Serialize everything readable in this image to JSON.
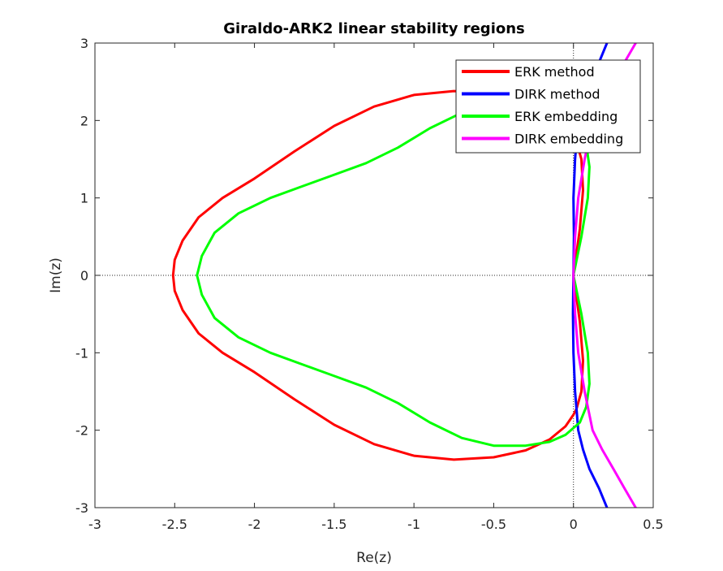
{
  "chart_data": {
    "type": "line",
    "title": "Giraldo-ARK2 linear stability regions",
    "xlabel": "Re(z)",
    "ylabel": "Im(z)",
    "xlim": [
      -3,
      0.5
    ],
    "ylim": [
      -3,
      3
    ],
    "xticks": [
      -3,
      -2.5,
      -2,
      -1.5,
      -1,
      -0.5,
      0,
      0.5
    ],
    "xtick_labels": [
      "-3",
      "-2.5",
      "-2",
      "-1.5",
      "-1",
      "-0.5",
      "0",
      "0.5"
    ],
    "yticks": [
      -3,
      -2,
      -1,
      0,
      1,
      2,
      3
    ],
    "ytick_labels": [
      "-3",
      "-2",
      "-1",
      "0",
      "1",
      "2",
      "3"
    ],
    "grid": false,
    "reference_lines": [
      "x=0 dotted",
      "y=0 dotted"
    ],
    "legend_position": "top-right",
    "series": [
      {
        "name": "ERK method",
        "color": "#ff0000",
        "x": [
          0.0,
          0.04,
          0.06,
          0.05,
          0.02,
          0.0,
          -0.05,
          -0.15,
          -0.3,
          -0.5,
          -0.75,
          -1.0,
          -1.25,
          -1.5,
          -1.75,
          -2.0,
          -2.2,
          -2.35,
          -2.45,
          -2.5,
          -2.51,
          -2.5,
          -2.45,
          -2.35,
          -2.2,
          -2.0,
          -1.75,
          -1.5,
          -1.25,
          -1.0,
          -0.75,
          -0.5,
          -0.3,
          -0.15,
          -0.05,
          0.0,
          0.02,
          0.05,
          0.06,
          0.04,
          0.0
        ],
        "y": [
          0.0,
          0.6,
          1.1,
          1.5,
          1.72,
          1.8,
          1.95,
          2.12,
          2.26,
          2.35,
          2.38,
          2.33,
          2.18,
          1.93,
          1.6,
          1.25,
          1.0,
          0.75,
          0.45,
          0.2,
          0.0,
          -0.2,
          -0.45,
          -0.75,
          -1.0,
          -1.25,
          -1.6,
          -1.93,
          -2.18,
          -2.33,
          -2.38,
          -2.35,
          -2.26,
          -2.12,
          -1.95,
          -1.8,
          -1.72,
          -1.5,
          -1.1,
          -0.6,
          0.0
        ]
      },
      {
        "name": "DIRK method",
        "color": "#0000ff",
        "x": [
          0.21,
          0.16,
          0.1,
          0.06,
          0.03,
          0.01,
          0.0,
          -0.003,
          0.0,
          0.003,
          0.0,
          0.01,
          0.03,
          0.06,
          0.1,
          0.16,
          0.21
        ],
        "y": [
          -3.0,
          -2.75,
          -2.5,
          -2.25,
          -2.0,
          -1.5,
          -1.0,
          -0.5,
          0.0,
          0.5,
          1.0,
          1.5,
          2.0,
          2.25,
          2.5,
          2.75,
          3.0
        ]
      },
      {
        "name": "ERK embedding",
        "color": "#00ff00",
        "x": [
          0.0,
          0.05,
          0.09,
          0.1,
          0.08,
          0.04,
          -0.05,
          -0.15,
          -0.3,
          -0.5,
          -0.7,
          -0.9,
          -1.1,
          -1.3,
          -1.5,
          -1.7,
          -1.9,
          -2.1,
          -2.25,
          -2.33,
          -2.36,
          -2.33,
          -2.25,
          -2.1,
          -1.9,
          -1.7,
          -1.5,
          -1.3,
          -1.1,
          -0.9,
          -0.7,
          -0.5,
          -0.3,
          -0.15,
          -0.05,
          0.04,
          0.08,
          0.1,
          0.09,
          0.05,
          0.0
        ],
        "y": [
          0.0,
          0.5,
          1.0,
          1.4,
          1.7,
          1.9,
          2.06,
          2.15,
          2.2,
          2.2,
          2.1,
          1.9,
          1.65,
          1.45,
          1.3,
          1.15,
          1.0,
          0.8,
          0.55,
          0.25,
          0.0,
          -0.25,
          -0.55,
          -0.8,
          -1.0,
          -1.15,
          -1.3,
          -1.45,
          -1.65,
          -1.9,
          -2.1,
          -2.2,
          -2.2,
          -2.15,
          -2.06,
          -1.9,
          -1.7,
          -1.4,
          -1.0,
          -0.5,
          0.0
        ]
      },
      {
        "name": "DIRK embedding",
        "color": "#ff00ff",
        "x": [
          0.39,
          0.32,
          0.25,
          0.18,
          0.12,
          0.07,
          0.03,
          0.01,
          0.0,
          0.01,
          0.03,
          0.07,
          0.12,
          0.18,
          0.25,
          0.32,
          0.39
        ],
        "y": [
          -3.0,
          -2.75,
          -2.5,
          -2.25,
          -2.0,
          -1.5,
          -1.0,
          -0.5,
          0.0,
          0.5,
          1.0,
          1.5,
          2.0,
          2.25,
          2.5,
          2.75,
          3.0
        ]
      }
    ]
  }
}
